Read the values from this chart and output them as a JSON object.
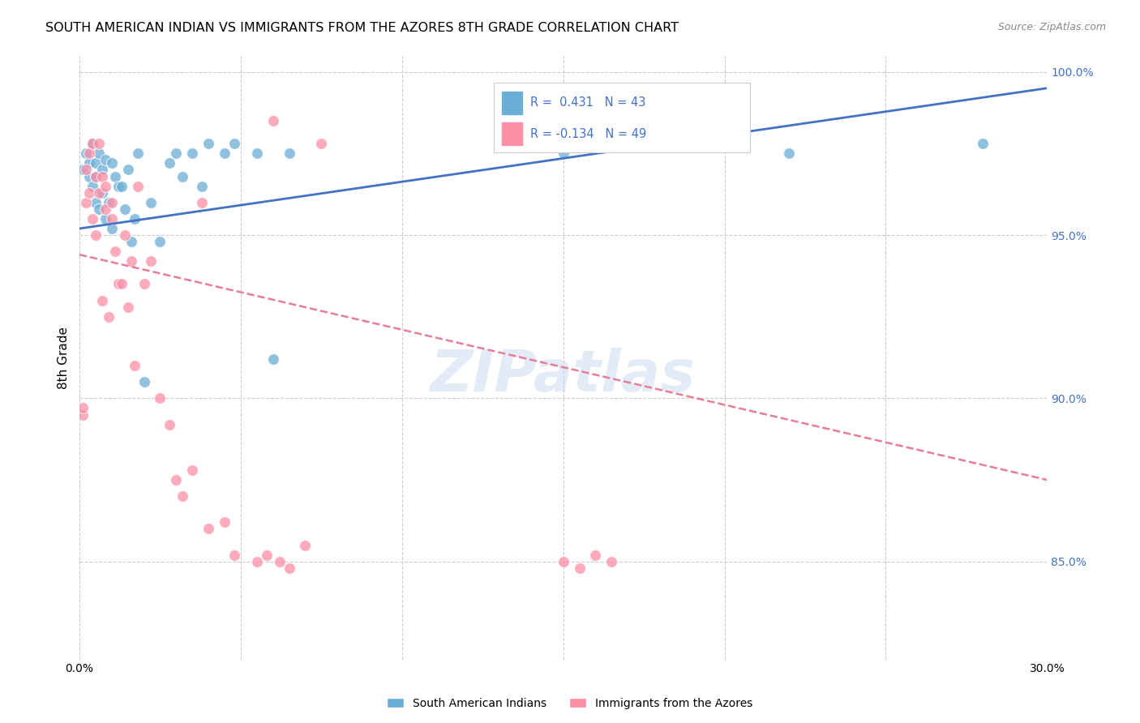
{
  "title": "SOUTH AMERICAN INDIAN VS IMMIGRANTS FROM THE AZORES 8TH GRADE CORRELATION CHART",
  "source": "Source: ZipAtlas.com",
  "ylabel": "8th Grade",
  "xlim": [
    0.0,
    0.3
  ],
  "ylim": [
    0.82,
    1.005
  ],
  "x_ticks": [
    0.0,
    0.05,
    0.1,
    0.15,
    0.2,
    0.25,
    0.3
  ],
  "y_ticks": [
    0.85,
    0.9,
    0.95,
    1.0
  ],
  "y_tick_labels": [
    "85.0%",
    "90.0%",
    "95.0%",
    "100.0%"
  ],
  "legend_blue_label": "South American Indians",
  "legend_pink_label": "Immigrants from the Azores",
  "r_blue": 0.431,
  "n_blue": 43,
  "r_pink": -0.134,
  "n_pink": 49,
  "blue_scatter_x": [
    0.001,
    0.002,
    0.003,
    0.003,
    0.004,
    0.004,
    0.005,
    0.005,
    0.005,
    0.006,
    0.006,
    0.007,
    0.007,
    0.008,
    0.008,
    0.009,
    0.01,
    0.01,
    0.011,
    0.012,
    0.013,
    0.014,
    0.015,
    0.016,
    0.017,
    0.018,
    0.02,
    0.022,
    0.025,
    0.028,
    0.03,
    0.032,
    0.035,
    0.038,
    0.04,
    0.045,
    0.048,
    0.055,
    0.06,
    0.065,
    0.15,
    0.22,
    0.28
  ],
  "blue_scatter_y": [
    0.97,
    0.975,
    0.968,
    0.972,
    0.965,
    0.978,
    0.96,
    0.968,
    0.972,
    0.958,
    0.975,
    0.963,
    0.97,
    0.955,
    0.973,
    0.96,
    0.952,
    0.972,
    0.968,
    0.965,
    0.965,
    0.958,
    0.97,
    0.948,
    0.955,
    0.975,
    0.905,
    0.96,
    0.948,
    0.972,
    0.975,
    0.968,
    0.975,
    0.965,
    0.978,
    0.975,
    0.978,
    0.975,
    0.912,
    0.975,
    0.975,
    0.975,
    0.978
  ],
  "pink_scatter_x": [
    0.001,
    0.001,
    0.002,
    0.002,
    0.003,
    0.003,
    0.004,
    0.004,
    0.005,
    0.005,
    0.006,
    0.006,
    0.007,
    0.007,
    0.008,
    0.008,
    0.009,
    0.01,
    0.01,
    0.011,
    0.012,
    0.013,
    0.014,
    0.015,
    0.016,
    0.017,
    0.018,
    0.02,
    0.022,
    0.025,
    0.028,
    0.03,
    0.032,
    0.035,
    0.038,
    0.04,
    0.045,
    0.048,
    0.055,
    0.058,
    0.06,
    0.062,
    0.065,
    0.07,
    0.075,
    0.15,
    0.155,
    0.16,
    0.165
  ],
  "pink_scatter_y": [
    0.895,
    0.897,
    0.97,
    0.96,
    0.975,
    0.963,
    0.978,
    0.955,
    0.968,
    0.95,
    0.978,
    0.963,
    0.968,
    0.93,
    0.958,
    0.965,
    0.925,
    0.955,
    0.96,
    0.945,
    0.935,
    0.935,
    0.95,
    0.928,
    0.942,
    0.91,
    0.965,
    0.935,
    0.942,
    0.9,
    0.892,
    0.875,
    0.87,
    0.878,
    0.96,
    0.86,
    0.862,
    0.852,
    0.85,
    0.852,
    0.985,
    0.85,
    0.848,
    0.855,
    0.978,
    0.85,
    0.848,
    0.852,
    0.85
  ],
  "blue_line_x": [
    0.0,
    0.3
  ],
  "blue_line_y": [
    0.952,
    0.995
  ],
  "pink_line_x": [
    0.0,
    0.3
  ],
  "pink_line_y": [
    0.944,
    0.875
  ],
  "watermark": "ZIPatlas",
  "background_color": "#ffffff",
  "blue_color": "#6baed6",
  "pink_color": "#fc8fa6",
  "trend_blue": "#4472c4",
  "trend_pink": "#e87d96",
  "grid_color": "#cccccc"
}
